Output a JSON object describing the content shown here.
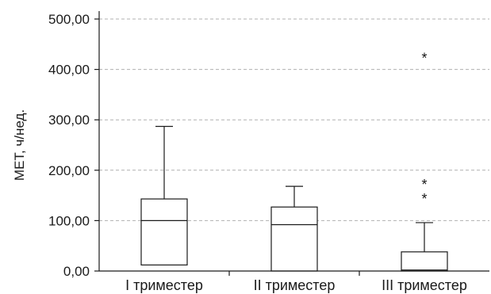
{
  "chart_data": {
    "type": "boxplot",
    "ylabel": "МЕТ, ч/нед.",
    "ylim": [
      0,
      500
    ],
    "yticks": [
      "0,00",
      "100,00",
      "200,00",
      "300,00",
      "400,00",
      "500,00"
    ],
    "ytick_values": [
      0,
      100,
      200,
      300,
      400,
      500
    ],
    "grid": true,
    "categories": [
      "I триместер",
      "II триместер",
      "III триместер"
    ],
    "boxes": [
      {
        "category": "I триместер",
        "whisker_low": 12,
        "q1": 12,
        "median": 100,
        "q3": 143,
        "whisker_high": 287,
        "outliers": []
      },
      {
        "category": "II триместер",
        "whisker_low": 0,
        "q1": 0,
        "median": 92,
        "q3": 127,
        "whisker_high": 168,
        "outliers": []
      },
      {
        "category": "III триместер",
        "whisker_low": 0,
        "q1": 0,
        "median": 2,
        "q3": 38,
        "whisker_high": 96,
        "outliers": [
          148,
          176,
          427
        ]
      }
    ],
    "outlier_marker": "*"
  }
}
